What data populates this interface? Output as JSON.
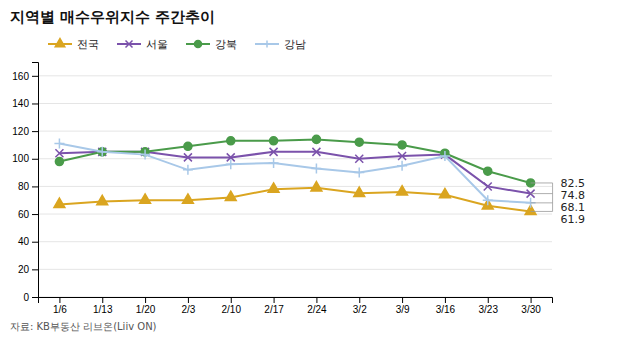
{
  "chart_data": {
    "type": "line",
    "title": "지역별 매수우위지수 주간추이",
    "source": "자료: KB부동산 리브온(Liiv ON)",
    "categories": [
      "1/6",
      "1/13",
      "1/20",
      "2/3",
      "2/10",
      "2/17",
      "2/24",
      "3/2",
      "3/9",
      "3/16",
      "3/23",
      "3/30"
    ],
    "series": [
      {
        "name": "전국",
        "color": "#DAA520",
        "marker": "triangle",
        "values": [
          67,
          69,
          70,
          70,
          72,
          78,
          79,
          75,
          76,
          74,
          66,
          61.9
        ]
      },
      {
        "name": "서울",
        "color": "#7B52AB",
        "marker": "x",
        "values": [
          104,
          105,
          105,
          101,
          101,
          105,
          105,
          100,
          102,
          103,
          80,
          74.8
        ]
      },
      {
        "name": "강북",
        "color": "#4A9B4A",
        "marker": "circle",
        "values": [
          98,
          105,
          105,
          109,
          113,
          113,
          114,
          112,
          110,
          104,
          91,
          82.5
        ]
      },
      {
        "name": "강남",
        "color": "#A8C8E8",
        "marker": "plus",
        "values": [
          111,
          105,
          103,
          92,
          96,
          97,
          93,
          90,
          95,
          102,
          70,
          68.1
        ]
      }
    ],
    "annotations": [
      {
        "series": "강북",
        "value": 82.5,
        "label": "82.5"
      },
      {
        "series": "서울",
        "value": 74.8,
        "label": "74.8"
      },
      {
        "series": "강남",
        "value": 68.1,
        "label": "68.1"
      },
      {
        "series": "전국",
        "value": 61.9,
        "label": "61.9"
      }
    ],
    "ylim": [
      0,
      170
    ],
    "yticks": [
      0,
      20,
      40,
      60,
      80,
      100,
      120,
      140,
      160
    ],
    "grid": true,
    "legend": "upper left"
  }
}
